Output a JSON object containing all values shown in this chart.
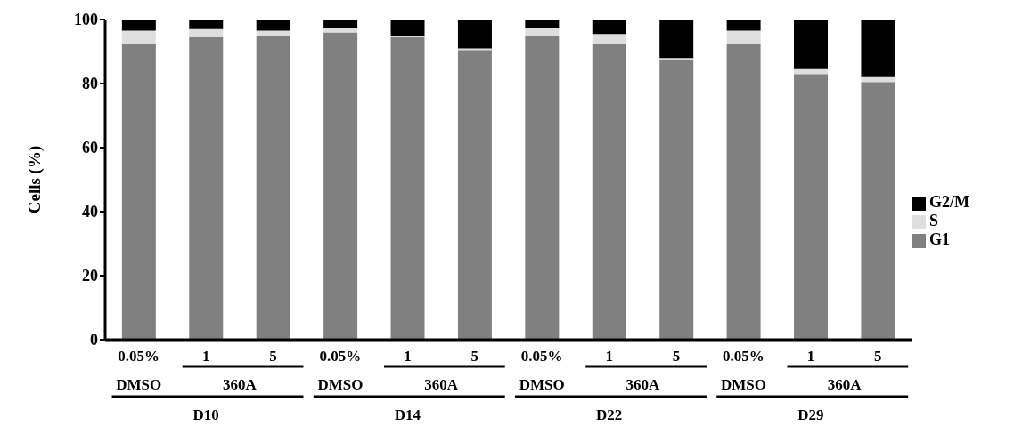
{
  "chart_data": {
    "type": "bar",
    "stacked": true,
    "ylabel": "Cells (%)",
    "ylim": [
      0,
      100
    ],
    "yticks": [
      0,
      20,
      40,
      60,
      80,
      100
    ],
    "legend": "right",
    "categories": [
      "0.05%",
      "1",
      "5",
      "0.05%",
      "1",
      "5",
      "0.05%",
      "1",
      "5",
      "0.05%",
      "1",
      "5"
    ],
    "series": [
      {
        "name": "G1",
        "color": "#808080",
        "values": [
          92.5,
          94.5,
          95,
          96,
          94.5,
          90.5,
          95,
          92.5,
          87.5,
          92.5,
          83,
          80.5
        ]
      },
      {
        "name": "S",
        "color": "#dedede",
        "values": [
          4,
          2.5,
          1.5,
          1.5,
          0.5,
          0.5,
          2.5,
          3,
          0.5,
          4,
          1.5,
          1.5
        ]
      },
      {
        "name": "G2/M",
        "color": "#000000",
        "values": [
          3.5,
          3,
          3.5,
          2.5,
          5,
          9,
          2.5,
          4.5,
          12,
          3.5,
          15.5,
          18
        ]
      }
    ],
    "annotations": [
      "DMSO",
      "360A",
      "D10",
      "DMSO",
      "360A",
      "D14",
      "DMSO",
      "360A",
      "D22",
      "DMSO",
      "360A",
      "D29"
    ]
  }
}
